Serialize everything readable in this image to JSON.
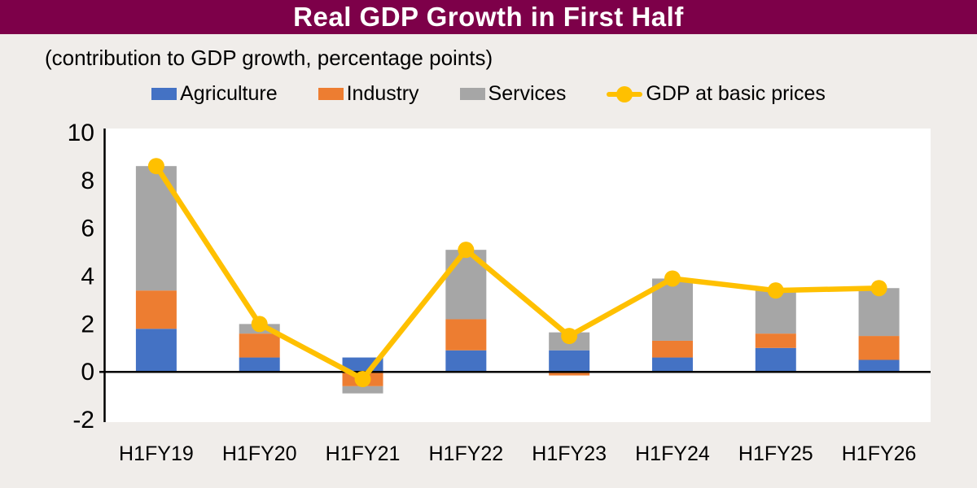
{
  "title": "Real GDP Growth in First Half",
  "subtitle": "(contribution to GDP growth, percentage points)",
  "colors": {
    "title_bar_bg": "#7D0049",
    "title_text": "#FFFFFF",
    "page_bg": "#F0EDEA",
    "plot_bg": "#FFFFFF",
    "axis": "#000000",
    "agriculture": "#4472C4",
    "industry": "#ED7D31",
    "services": "#A6A6A6",
    "gdp_line": "#FFC000"
  },
  "legend": [
    {
      "label": "Agriculture",
      "color": "#4472C4",
      "marker": "box"
    },
    {
      "label": "Industry",
      "color": "#ED7D31",
      "marker": "box"
    },
    {
      "label": "Services",
      "color": "#A6A6A6",
      "marker": "box"
    },
    {
      "label": "GDP at basic prices",
      "color": "#FFC000",
      "marker": "line"
    }
  ],
  "chart_data": {
    "type": "bar",
    "subtype": "stacked-bars-with-line-overlay",
    "title": "Real GDP Growth in First Half",
    "subtitle": "(contribution to GDP growth, percentage points)",
    "xlabel": "",
    "ylabel": "",
    "categories": [
      "H1FY19",
      "H1FY20",
      "H1FY21",
      "H1FY22",
      "H1FY23",
      "H1FY24",
      "H1FY25",
      "H1FY26"
    ],
    "series": [
      {
        "name": "Agriculture",
        "type": "bar",
        "color": "#4472C4",
        "values": [
          1.8,
          0.6,
          0.6,
          0.9,
          0.9,
          0.6,
          1.0,
          0.5
        ]
      },
      {
        "name": "Industry",
        "type": "bar",
        "color": "#ED7D31",
        "values": [
          1.6,
          1.0,
          -0.6,
          1.3,
          -0.15,
          0.7,
          0.6,
          1.0
        ]
      },
      {
        "name": "Services",
        "type": "bar",
        "color": "#A6A6A6",
        "values": [
          5.2,
          0.4,
          -0.3,
          2.9,
          0.75,
          2.6,
          1.8,
          2.0
        ]
      },
      {
        "name": "GDP at basic prices",
        "type": "line",
        "color": "#FFC000",
        "values": [
          8.6,
          2.0,
          -0.3,
          5.1,
          1.5,
          3.9,
          3.4,
          3.5
        ]
      }
    ],
    "y_axis": {
      "min": -2,
      "max": 10,
      "tick_step": 2,
      "ticks": [
        10,
        8,
        6,
        4,
        2,
        0,
        -2
      ]
    },
    "grid": false,
    "legend_position": "top"
  }
}
